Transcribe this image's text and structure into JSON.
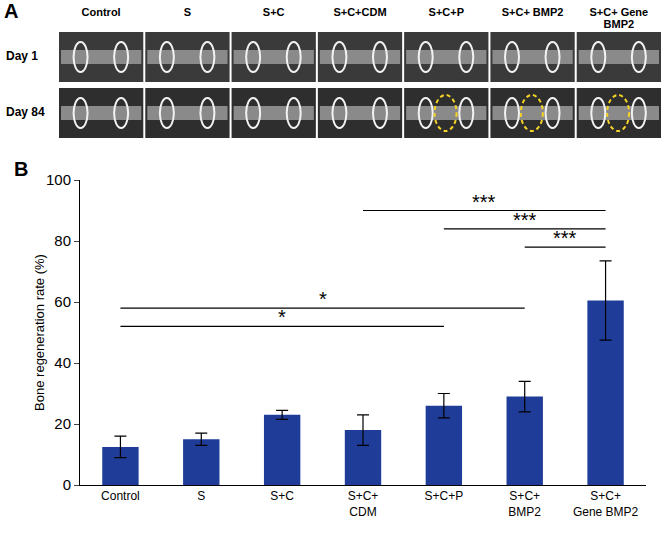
{
  "panel_a": {
    "label": "A",
    "columns": [
      "Control",
      "S",
      "S+C",
      "S+C+CDM",
      "S+C+P",
      "S+C+ BMP2",
      "S+C+ Gene BMP2"
    ],
    "rows": [
      "Day 1",
      "Day 84"
    ],
    "highlight_day84": [
      4,
      5,
      6
    ]
  },
  "chart_data": {
    "panel_label": "B",
    "type": "bar",
    "categories": [
      "Control",
      "S",
      "S+C",
      "S+C+\nCDM",
      "S+C+P",
      "S+C+\nBMP2",
      "S+C+\nGene BMP2"
    ],
    "values": [
      12.5,
      15,
      23,
      18,
      26,
      29,
      60.5
    ],
    "errors": [
      3.5,
      2,
      1.5,
      5,
      4,
      5,
      13
    ],
    "color": "#1f3c99",
    "y_label": "Bone regeneration rate (%)",
    "ylim": [
      0,
      100
    ],
    "yticks": [
      0,
      20,
      40,
      60,
      80,
      100
    ],
    "grid": false,
    "significance": [
      {
        "from": 3,
        "to": 6,
        "y": 90,
        "label": "***"
      },
      {
        "from": 4,
        "to": 6,
        "y": 84,
        "label": "***"
      },
      {
        "from": 5,
        "to": 6,
        "y": 78,
        "label": "***"
      },
      {
        "from": 0,
        "to": 5,
        "y": 58,
        "label": "*"
      },
      {
        "from": 0,
        "to": 4,
        "y": 52,
        "label": "*"
      }
    ]
  }
}
